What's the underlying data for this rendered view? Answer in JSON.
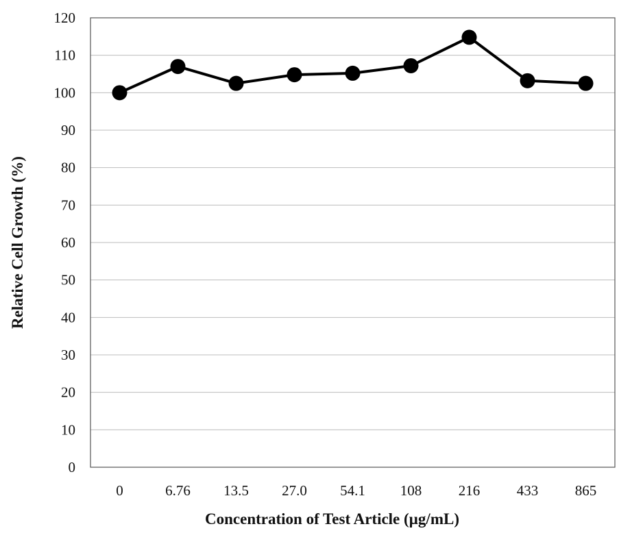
{
  "chart_data": {
    "type": "line",
    "title": "",
    "xlabel": "Concentration of Test Article (µg/mL)",
    "ylabel": "Relative Cell Growth (%)",
    "categories": [
      "0",
      "6.76",
      "13.5",
      "27.0",
      "54.1",
      "108",
      "216",
      "433",
      "865"
    ],
    "series": [
      {
        "values": [
          100,
          107,
          102.5,
          104.8,
          105.2,
          107.2,
          114.8,
          103.2,
          102.5
        ]
      }
    ],
    "ylim": [
      0,
      120
    ],
    "yticks": [
      0,
      10,
      20,
      30,
      40,
      50,
      60,
      70,
      80,
      90,
      100,
      110,
      120
    ],
    "grid": true,
    "marker": "circle",
    "colors": {
      "line": "#000000",
      "grid": "#bdbdbd"
    }
  }
}
